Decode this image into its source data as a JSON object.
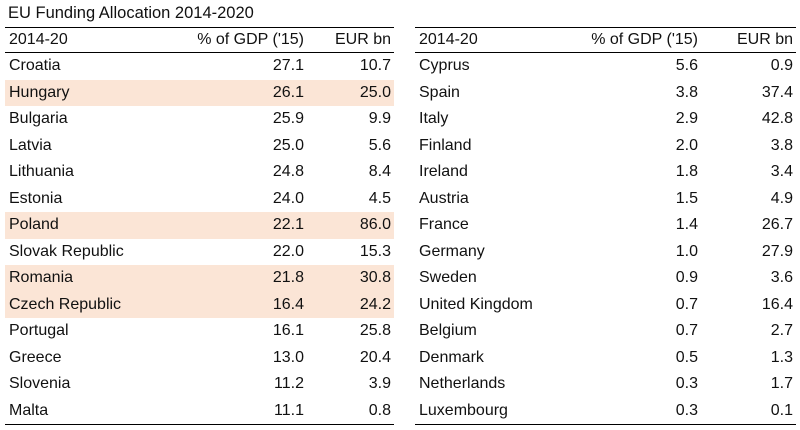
{
  "title": "EU Funding Allocation 2014-2020",
  "highlight_color": "#fbe5d6",
  "headers": {
    "name": "2014-20",
    "gdp": "% of GDP ('15)",
    "eur": "EUR bn"
  },
  "left_rows": [
    {
      "name": "Croatia",
      "gdp": "27.1",
      "eur": "10.7",
      "highlight": false
    },
    {
      "name": "Hungary",
      "gdp": "26.1",
      "eur": "25.0",
      "highlight": true
    },
    {
      "name": "Bulgaria",
      "gdp": "25.9",
      "eur": "9.9",
      "highlight": false
    },
    {
      "name": "Latvia",
      "gdp": "25.0",
      "eur": "5.6",
      "highlight": false
    },
    {
      "name": "Lithuania",
      "gdp": "24.8",
      "eur": "8.4",
      "highlight": false
    },
    {
      "name": "Estonia",
      "gdp": "24.0",
      "eur": "4.5",
      "highlight": false
    },
    {
      "name": "Poland",
      "gdp": "22.1",
      "eur": "86.0",
      "highlight": true
    },
    {
      "name": "Slovak Republic",
      "gdp": "22.0",
      "eur": "15.3",
      "highlight": false
    },
    {
      "name": "Romania",
      "gdp": "21.8",
      "eur": "30.8",
      "highlight": true
    },
    {
      "name": "Czech Republic",
      "gdp": "16.4",
      "eur": "24.2",
      "highlight": true
    },
    {
      "name": "Portugal",
      "gdp": "16.1",
      "eur": "25.8",
      "highlight": false
    },
    {
      "name": "Greece",
      "gdp": "13.0",
      "eur": "20.4",
      "highlight": false
    },
    {
      "name": "Slovenia",
      "gdp": "11.2",
      "eur": "3.9",
      "highlight": false
    },
    {
      "name": "Malta",
      "gdp": "11.1",
      "eur": "0.8",
      "highlight": false
    }
  ],
  "right_rows": [
    {
      "name": "Cyprus",
      "gdp": "5.6",
      "eur": "0.9",
      "highlight": false
    },
    {
      "name": "Spain",
      "gdp": "3.8",
      "eur": "37.4",
      "highlight": false
    },
    {
      "name": "Italy",
      "gdp": "2.9",
      "eur": "42.8",
      "highlight": false
    },
    {
      "name": "Finland",
      "gdp": "2.0",
      "eur": "3.8",
      "highlight": false
    },
    {
      "name": "Ireland",
      "gdp": "1.8",
      "eur": "3.4",
      "highlight": false
    },
    {
      "name": "Austria",
      "gdp": "1.5",
      "eur": "4.9",
      "highlight": false
    },
    {
      "name": "France",
      "gdp": "1.4",
      "eur": "26.7",
      "highlight": false
    },
    {
      "name": "Germany",
      "gdp": "1.0",
      "eur": "27.9",
      "highlight": false
    },
    {
      "name": "Sweden",
      "gdp": "0.9",
      "eur": "3.6",
      "highlight": false
    },
    {
      "name": "United Kingdom",
      "gdp": "0.7",
      "eur": "16.4",
      "highlight": false
    },
    {
      "name": "Belgium",
      "gdp": "0.7",
      "eur": "2.7",
      "highlight": false
    },
    {
      "name": "Denmark",
      "gdp": "0.5",
      "eur": "1.3",
      "highlight": false
    },
    {
      "name": "Netherlands",
      "gdp": "0.3",
      "eur": "1.7",
      "highlight": false
    },
    {
      "name": "Luxembourg",
      "gdp": "0.3",
      "eur": "0.1",
      "highlight": false
    }
  ]
}
